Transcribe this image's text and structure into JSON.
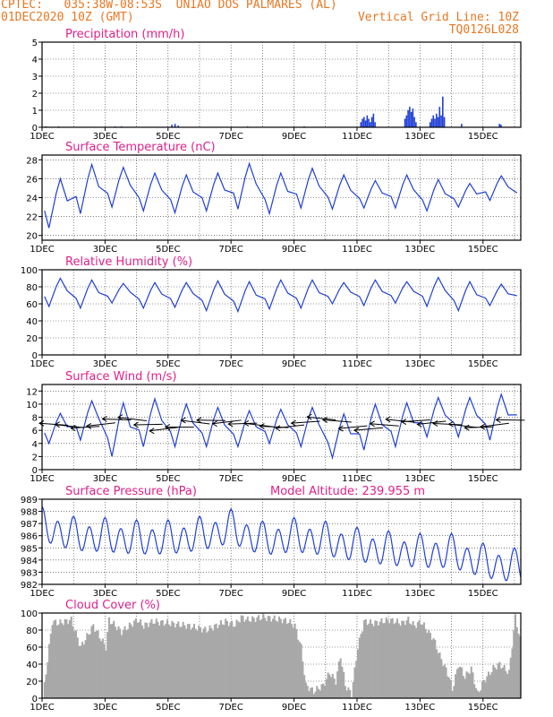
{
  "header": {
    "line1_left": "CPTEC:   035:38W-08:53S  UNIAO DOS PALMARES (AL)",
    "line2_left": "01DEC2020 10Z (GMT)",
    "line2_right": "Vertical Grid Line: 10Z",
    "line3_right": "TQ0126L028"
  },
  "x_axis": {
    "ticks": [
      "1DEC",
      "3DEC",
      "5DEC",
      "7DEC",
      "9DEC",
      "11DEC",
      "13DEC",
      "15DEC"
    ],
    "tick_days": [
      0,
      2,
      4,
      6,
      8,
      10,
      12,
      14
    ],
    "start_label": "1DEC",
    "range_days": [
      0,
      15.2
    ]
  },
  "colors": {
    "title": "#e0218a",
    "header": "#e87722",
    "line": "#1f3fd6",
    "bar": "#1f3fd6",
    "cloud": "#a8a8a8",
    "arrow": "#000000"
  },
  "chart_data": [
    {
      "id": "precip",
      "type": "bar",
      "title": "Precipitation (mm/h)",
      "ylim": [
        0,
        5
      ],
      "yticks": [
        0,
        1,
        2,
        3,
        4,
        5
      ],
      "x_days": [
        0.1,
        0.5,
        2.3,
        2.5,
        4.1,
        4.2,
        4.3,
        6.5,
        8.3,
        10.1,
        10.15,
        10.2,
        10.25,
        10.3,
        10.35,
        10.4,
        10.45,
        10.5,
        10.55,
        11.5,
        11.55,
        11.6,
        11.65,
        11.7,
        11.75,
        11.8,
        11.85,
        12.3,
        12.35,
        12.4,
        12.45,
        12.5,
        12.55,
        12.6,
        12.65,
        12.7,
        12.75,
        13.3,
        14.5,
        14.55
      ],
      "values": [
        0.05,
        0.05,
        0.05,
        0.05,
        0.15,
        0.2,
        0.1,
        0.05,
        0.05,
        0.3,
        0.5,
        0.6,
        0.4,
        0.7,
        0.5,
        0.3,
        0.6,
        0.8,
        0.3,
        0.5,
        0.7,
        1.0,
        1.2,
        0.9,
        1.1,
        0.6,
        0.3,
        0.3,
        0.5,
        0.7,
        0.5,
        0.8,
        0.6,
        1.2,
        0.7,
        1.8,
        0.6,
        0.2,
        0.2,
        0.15
      ]
    },
    {
      "id": "temp",
      "type": "line",
      "title": "Surface Temperature (nC)",
      "ylim": [
        19.5,
        28.5
      ],
      "yticks": [
        20,
        22,
        24,
        26,
        28
      ],
      "daily": [
        {
          "min": 20.8,
          "max": 26.0
        },
        {
          "min": 22.3,
          "max": 27.5
        },
        {
          "min": 23.0,
          "max": 27.2
        },
        {
          "min": 22.6,
          "max": 26.6
        },
        {
          "min": 22.4,
          "max": 26.4
        },
        {
          "min": 22.6,
          "max": 26.6
        },
        {
          "min": 22.8,
          "max": 27.6
        },
        {
          "min": 22.3,
          "max": 26.6
        },
        {
          "min": 22.9,
          "max": 27.1
        },
        {
          "min": 22.8,
          "max": 26.4
        },
        {
          "min": 22.9,
          "max": 25.8
        },
        {
          "min": 22.9,
          "max": 26.4
        },
        {
          "min": 22.6,
          "max": 25.9
        },
        {
          "min": 23.0,
          "max": 25.5
        },
        {
          "min": 23.7,
          "max": 26.3
        },
        {
          "min": 23.8,
          "max": 25.8
        }
      ]
    },
    {
      "id": "rh",
      "type": "line",
      "title": "Relative Humidity (%)",
      "ylim": [
        0,
        100
      ],
      "yticks": [
        0,
        20,
        40,
        60,
        80,
        100
      ],
      "daily": [
        {
          "min": 57,
          "max": 90
        },
        {
          "min": 55,
          "max": 88
        },
        {
          "min": 61,
          "max": 84
        },
        {
          "min": 55,
          "max": 85
        },
        {
          "min": 56,
          "max": 85
        },
        {
          "min": 52,
          "max": 87
        },
        {
          "min": 51,
          "max": 86
        },
        {
          "min": 54,
          "max": 88
        },
        {
          "min": 55,
          "max": 88
        },
        {
          "min": 60,
          "max": 85
        },
        {
          "min": 58,
          "max": 88
        },
        {
          "min": 61,
          "max": 86
        },
        {
          "min": 57,
          "max": 91
        },
        {
          "min": 52,
          "max": 86
        },
        {
          "min": 58,
          "max": 83
        },
        {
          "min": 64,
          "max": 80
        }
      ]
    },
    {
      "id": "wind",
      "type": "line",
      "title": "Surface Wind (m/s)",
      "ylim": [
        0,
        13
      ],
      "yticks": [
        0,
        2,
        4,
        6,
        8,
        10,
        12
      ],
      "daily": [
        {
          "min": 4.0,
          "max": 8.6
        },
        {
          "min": 4.5,
          "max": 10.5
        },
        {
          "min": 2.0,
          "max": 10.2
        },
        {
          "min": 3.5,
          "max": 10.8
        },
        {
          "min": 3.5,
          "max": 10.0
        },
        {
          "min": 3.5,
          "max": 9.5
        },
        {
          "min": 3.5,
          "max": 9.0
        },
        {
          "min": 4.0,
          "max": 9.2
        },
        {
          "min": 3.5,
          "max": 9.5
        },
        {
          "min": 1.8,
          "max": 8.5
        },
        {
          "min": 3.0,
          "max": 10.0
        },
        {
          "min": 3.5,
          "max": 10.2
        },
        {
          "min": 5.0,
          "max": 11.0
        },
        {
          "min": 5.0,
          "max": 11.0
        },
        {
          "min": 4.5,
          "max": 11.5
        },
        {
          "min": 6.5,
          "max": 11.8
        }
      ],
      "arrows_day_step": 0.5
    },
    {
      "id": "pres",
      "type": "line",
      "title": "Surface Pressure (hPa)",
      "annotation": "Model Altitude: 239.955 m",
      "ylim": [
        982,
        989
      ],
      "yticks": [
        982,
        983,
        984,
        985,
        986,
        987,
        988,
        989
      ],
      "daily_mean": [
        986.8,
        986.0,
        985.9,
        985.7,
        985.7,
        986.0,
        986.6,
        985.6,
        985.9,
        985.6,
        985.1,
        984.8,
        984.6,
        984.6,
        983.8,
        983.4
      ],
      "semidiurnal_amp": 1.2
    },
    {
      "id": "cloud",
      "type": "area",
      "title": "Cloud Cover (%)",
      "ylim": [
        0,
        100
      ],
      "yticks": [
        0,
        20,
        40,
        60,
        80,
        100
      ],
      "knots_day": [
        0.0,
        0.25,
        0.3,
        0.5,
        0.9,
        1.2,
        1.6,
        2.0,
        2.1,
        2.5,
        3.0,
        3.2,
        3.5,
        4.0,
        4.6,
        5.2,
        5.8,
        6.1,
        6.3,
        6.5,
        7.0,
        7.6,
        7.8,
        8.0,
        8.2,
        8.35,
        8.6,
        8.9,
        9.1,
        9.3,
        9.45,
        9.6,
        9.8,
        10.0,
        10.2,
        10.5,
        11.0,
        11.4,
        11.6,
        11.8,
        12.0,
        12.4,
        12.6,
        12.9,
        13.0,
        13.2,
        13.4,
        13.6,
        13.8,
        14.0,
        14.3,
        14.5,
        14.8,
        15.0,
        15.2
      ],
      "knots_val": [
        0,
        75,
        90,
        88,
        92,
        60,
        85,
        60,
        92,
        78,
        92,
        85,
        90,
        88,
        85,
        80,
        90,
        86,
        95,
        92,
        95,
        92,
        90,
        85,
        60,
        15,
        8,
        15,
        30,
        20,
        50,
        15,
        5,
        60,
        90,
        88,
        92,
        88,
        92,
        85,
        90,
        70,
        50,
        25,
        10,
        40,
        25,
        35,
        5,
        20,
        35,
        40,
        30,
        95,
        60
      ]
    }
  ]
}
